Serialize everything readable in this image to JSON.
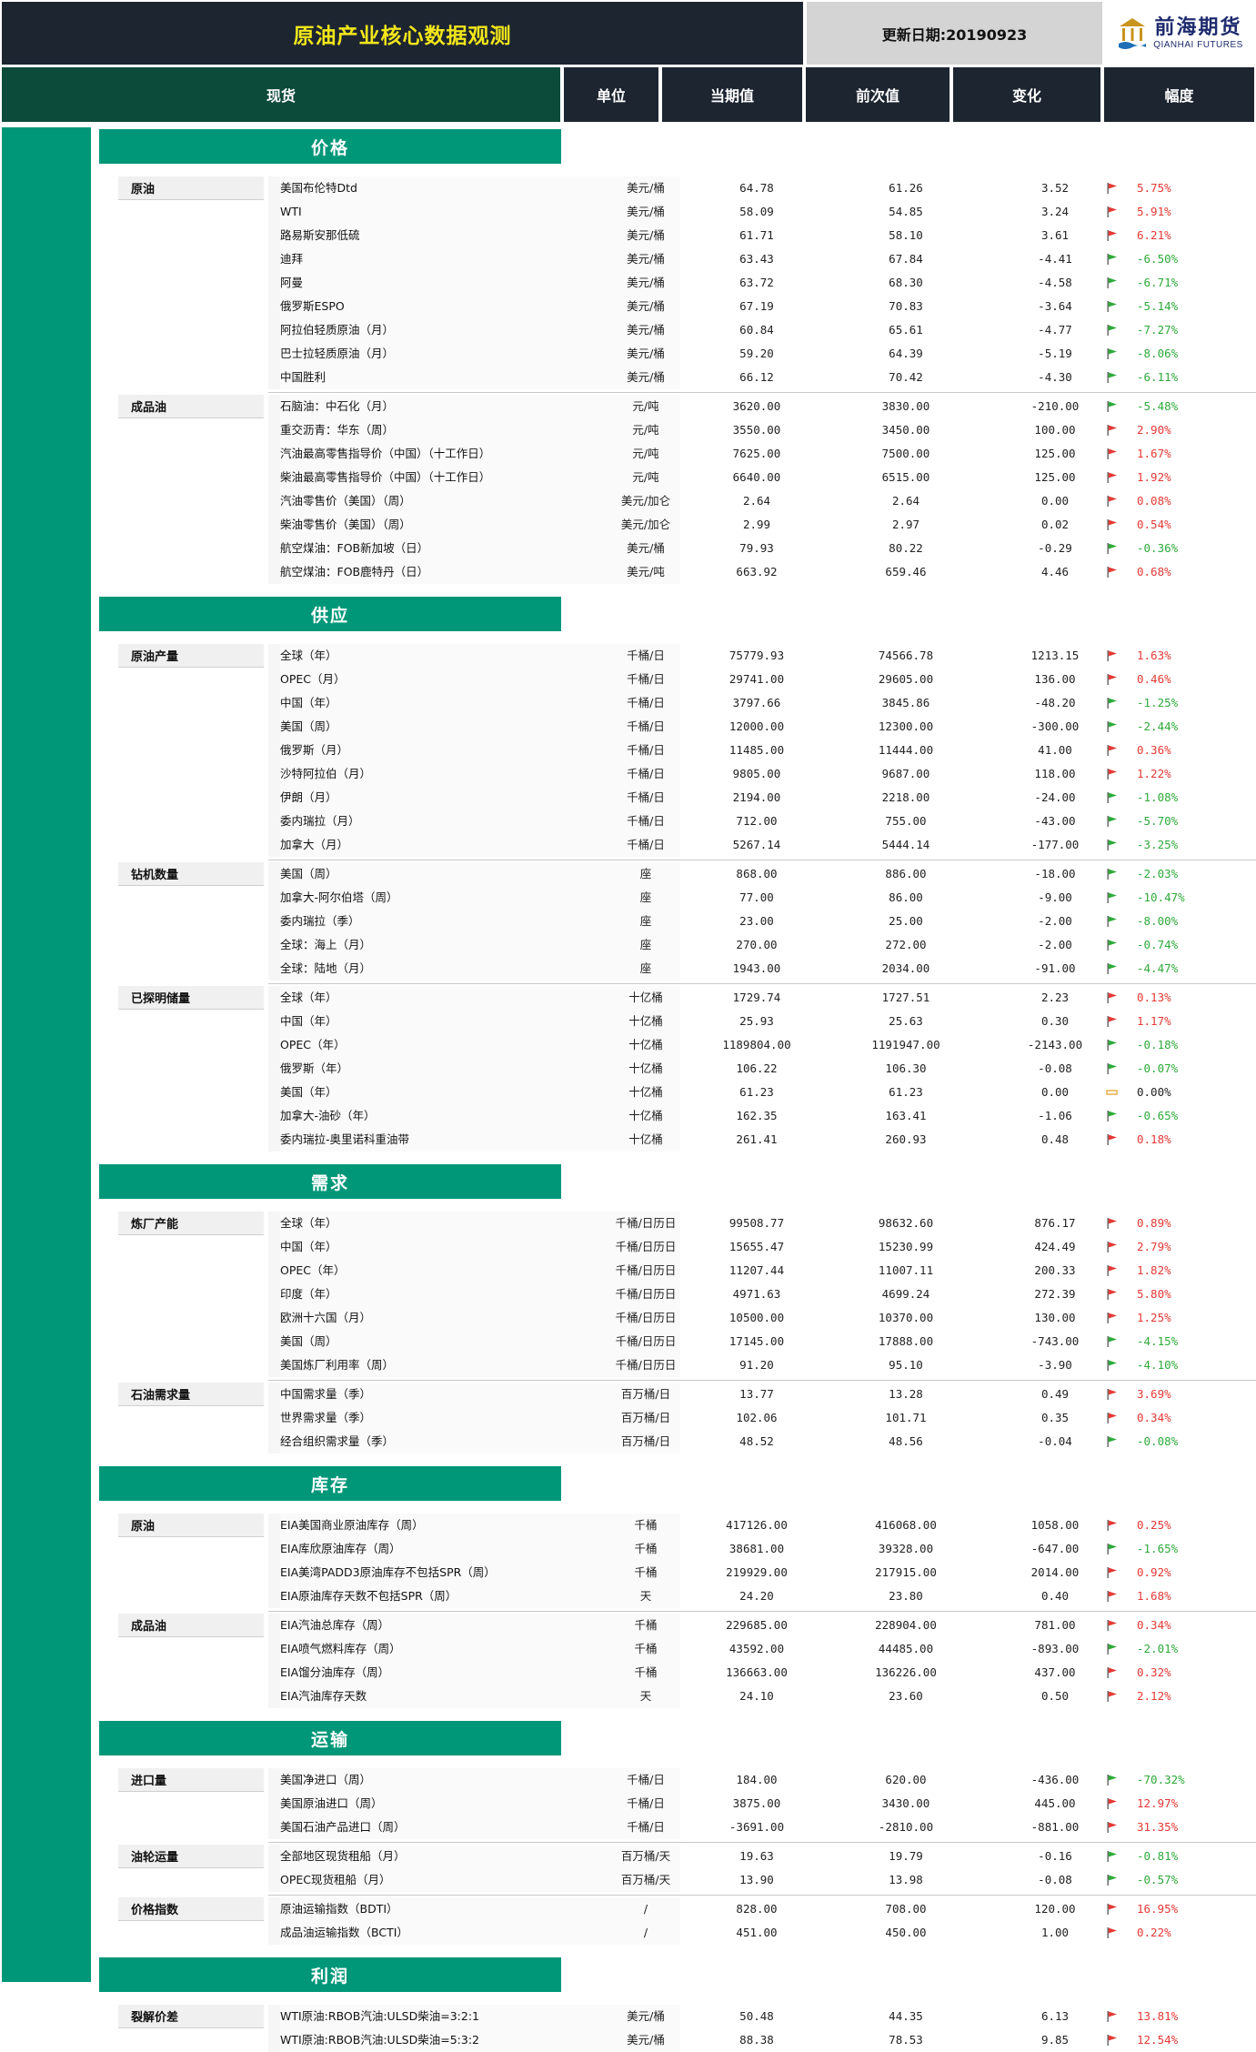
{
  "header": {
    "title": "原油产业核心数据观测",
    "update_label": "更新日期:20190923",
    "logo_cn": "前海期货",
    "logo_en": "QIANHAI FUTURES"
  },
  "columns": {
    "spot": "现货",
    "unit": "单位",
    "current": "当期值",
    "previous": "前次值",
    "change": "变化",
    "pct": "幅度"
  },
  "colors": {
    "up": "#e53935",
    "down": "#2eaa3a",
    "flat": "#e8b04a",
    "accent": "#009779",
    "dark": "#1d2531"
  },
  "sections": [
    {
      "title": "价格",
      "groups": [
        {
          "label": "原油",
          "rows": [
            [
              "美国布伦特Dtd",
              "美元/桶",
              "64.78",
              "61.26",
              "3.52",
              "5.75%",
              "up"
            ],
            [
              "WTI",
              "美元/桶",
              "58.09",
              "54.85",
              "3.24",
              "5.91%",
              "up"
            ],
            [
              "路易斯安那低硫",
              "美元/桶",
              "61.71",
              "58.10",
              "3.61",
              "6.21%",
              "up"
            ],
            [
              "迪拜",
              "美元/桶",
              "63.43",
              "67.84",
              "-4.41",
              "-6.50%",
              "down"
            ],
            [
              "阿曼",
              "美元/桶",
              "63.72",
              "68.30",
              "-4.58",
              "-6.71%",
              "down"
            ],
            [
              "俄罗斯ESPO",
              "美元/桶",
              "67.19",
              "70.83",
              "-3.64",
              "-5.14%",
              "down"
            ],
            [
              "阿拉伯轻质原油（月）",
              "美元/桶",
              "60.84",
              "65.61",
              "-4.77",
              "-7.27%",
              "down"
            ],
            [
              "巴士拉轻质原油（月）",
              "美元/桶",
              "59.20",
              "64.39",
              "-5.19",
              "-8.06%",
              "down"
            ],
            [
              "中国胜利",
              "美元/桶",
              "66.12",
              "70.42",
              "-4.30",
              "-6.11%",
              "down"
            ]
          ]
        },
        {
          "label": "成品油",
          "rows": [
            [
              "石脑油：中石化（月）",
              "元/吨",
              "3620.00",
              "3830.00",
              "-210.00",
              "-5.48%",
              "down"
            ],
            [
              "重交沥青：华东（周）",
              "元/吨",
              "3550.00",
              "3450.00",
              "100.00",
              "2.90%",
              "up"
            ],
            [
              "汽油最高零售指导价（中国）（十工作日）",
              "元/吨",
              "7625.00",
              "7500.00",
              "125.00",
              "1.67%",
              "up"
            ],
            [
              "柴油最高零售指导价（中国）（十工作日）",
              "元/吨",
              "6640.00",
              "6515.00",
              "125.00",
              "1.92%",
              "up"
            ],
            [
              "汽油零售价（美国）（周）",
              "美元/加仑",
              "2.64",
              "2.64",
              "0.00",
              "0.08%",
              "up"
            ],
            [
              "柴油零售价（美国）（周）",
              "美元/加仑",
              "2.99",
              "2.97",
              "0.02",
              "0.54%",
              "up"
            ],
            [
              "航空煤油：FOB新加坡（日）",
              "美元/桶",
              "79.93",
              "80.22",
              "-0.29",
              "-0.36%",
              "down"
            ],
            [
              "航空煤油：FOB鹿特丹（日）",
              "美元/吨",
              "663.92",
              "659.46",
              "4.46",
              "0.68%",
              "up"
            ]
          ]
        }
      ]
    },
    {
      "title": "供应",
      "groups": [
        {
          "label": "原油产量",
          "rows": [
            [
              "全球（年）",
              "千桶/日",
              "75779.93",
              "74566.78",
              "1213.15",
              "1.63%",
              "up"
            ],
            [
              "OPEC（月）",
              "千桶/日",
              "29741.00",
              "29605.00",
              "136.00",
              "0.46%",
              "up"
            ],
            [
              "中国（年）",
              "千桶/日",
              "3797.66",
              "3845.86",
              "-48.20",
              "-1.25%",
              "down"
            ],
            [
              "美国（周）",
              "千桶/日",
              "12000.00",
              "12300.00",
              "-300.00",
              "-2.44%",
              "down"
            ],
            [
              "俄罗斯（月）",
              "千桶/日",
              "11485.00",
              "11444.00",
              "41.00",
              "0.36%",
              "up"
            ],
            [
              "沙特阿拉伯（月）",
              "千桶/日",
              "9805.00",
              "9687.00",
              "118.00",
              "1.22%",
              "up"
            ],
            [
              "伊朗（月）",
              "千桶/日",
              "2194.00",
              "2218.00",
              "-24.00",
              "-1.08%",
              "down"
            ],
            [
              "委内瑞拉（月）",
              "千桶/日",
              "712.00",
              "755.00",
              "-43.00",
              "-5.70%",
              "down"
            ],
            [
              "加拿大（月）",
              "千桶/日",
              "5267.14",
              "5444.14",
              "-177.00",
              "-3.25%",
              "down"
            ]
          ]
        },
        {
          "label": "钻机数量",
          "rows": [
            [
              "美国（周）",
              "座",
              "868.00",
              "886.00",
              "-18.00",
              "-2.03%",
              "down"
            ],
            [
              "加拿大-阿尔伯塔（周）",
              "座",
              "77.00",
              "86.00",
              "-9.00",
              "-10.47%",
              "down"
            ],
            [
              "委内瑞拉（季）",
              "座",
              "23.00",
              "25.00",
              "-2.00",
              "-8.00%",
              "down"
            ],
            [
              "全球：海上（月）",
              "座",
              "270.00",
              "272.00",
              "-2.00",
              "-0.74%",
              "down"
            ],
            [
              "全球：陆地（月）",
              "座",
              "1943.00",
              "2034.00",
              "-91.00",
              "-4.47%",
              "down"
            ]
          ]
        },
        {
          "label": "已探明储量",
          "rows": [
            [
              "全球（年）",
              "十亿桶",
              "1729.74",
              "1727.51",
              "2.23",
              "0.13%",
              "up"
            ],
            [
              "中国（年）",
              "十亿桶",
              "25.93",
              "25.63",
              "0.30",
              "1.17%",
              "up"
            ],
            [
              "OPEC（年）",
              "十亿桶",
              "1189804.00",
              "1191947.00",
              "-2143.00",
              "-0.18%",
              "down"
            ],
            [
              "俄罗斯（年）",
              "十亿桶",
              "106.22",
              "106.30",
              "-0.08",
              "-0.07%",
              "down"
            ],
            [
              "美国（年）",
              "十亿桶",
              "61.23",
              "61.23",
              "0.00",
              "0.00%",
              "flat"
            ],
            [
              "加拿大-油砂（年）",
              "十亿桶",
              "162.35",
              "163.41",
              "-1.06",
              "-0.65%",
              "down"
            ],
            [
              "委内瑞拉-奥里诺科重油带",
              "十亿桶",
              "261.41",
              "260.93",
              "0.48",
              "0.18%",
              "up"
            ]
          ]
        }
      ]
    },
    {
      "title": "需求",
      "groups": [
        {
          "label": "炼厂产能",
          "rows": [
            [
              "全球（年）",
              "千桶/日历日",
              "99508.77",
              "98632.60",
              "876.17",
              "0.89%",
              "up"
            ],
            [
              "中国（年）",
              "千桶/日历日",
              "15655.47",
              "15230.99",
              "424.49",
              "2.79%",
              "up"
            ],
            [
              "OPEC（年）",
              "千桶/日历日",
              "11207.44",
              "11007.11",
              "200.33",
              "1.82%",
              "up"
            ],
            [
              "印度（年）",
              "千桶/日历日",
              "4971.63",
              "4699.24",
              "272.39",
              "5.80%",
              "up"
            ],
            [
              "欧洲十六国（月）",
              "千桶/日历日",
              "10500.00",
              "10370.00",
              "130.00",
              "1.25%",
              "up"
            ],
            [
              "美国（周）",
              "千桶/日历日",
              "17145.00",
              "17888.00",
              "-743.00",
              "-4.15%",
              "down"
            ],
            [
              "美国炼厂利用率（周）",
              "千桶/日历日",
              "91.20",
              "95.10",
              "-3.90",
              "-4.10%",
              "down"
            ]
          ]
        },
        {
          "label": "石油需求量",
          "rows": [
            [
              "中国需求量（季）",
              "百万桶/日",
              "13.77",
              "13.28",
              "0.49",
              "3.69%",
              "up"
            ],
            [
              "世界需求量（季）",
              "百万桶/日",
              "102.06",
              "101.71",
              "0.35",
              "0.34%",
              "up"
            ],
            [
              "经合组织需求量（季）",
              "百万桶/日",
              "48.52",
              "48.56",
              "-0.04",
              "-0.08%",
              "down"
            ]
          ]
        }
      ]
    },
    {
      "title": "库存",
      "groups": [
        {
          "label": "原油",
          "rows": [
            [
              "EIA美国商业原油库存（周）",
              "千桶",
              "417126.00",
              "416068.00",
              "1058.00",
              "0.25%",
              "up"
            ],
            [
              "EIA库欣原油库存（周）",
              "千桶",
              "38681.00",
              "39328.00",
              "-647.00",
              "-1.65%",
              "down"
            ],
            [
              "EIA美湾PADD3原油库存不包括SPR（周）",
              "千桶",
              "219929.00",
              "217915.00",
              "2014.00",
              "0.92%",
              "up"
            ],
            [
              "EIA原油库存天数不包括SPR（周）",
              "天",
              "24.20",
              "23.80",
              "0.40",
              "1.68%",
              "up"
            ]
          ]
        },
        {
          "label": "成品油",
          "rows": [
            [
              "EIA汽油总库存（周）",
              "千桶",
              "229685.00",
              "228904.00",
              "781.00",
              "0.34%",
              "up"
            ],
            [
              "EIA喷气燃料库存（周）",
              "千桶",
              "43592.00",
              "44485.00",
              "-893.00",
              "-2.01%",
              "down"
            ],
            [
              "EIA馏分油库存（周）",
              "千桶",
              "136663.00",
              "136226.00",
              "437.00",
              "0.32%",
              "up"
            ],
            [
              "EIA汽油库存天数",
              "天",
              "24.10",
              "23.60",
              "0.50",
              "2.12%",
              "up"
            ]
          ]
        }
      ]
    },
    {
      "title": "运输",
      "groups": [
        {
          "label": "进口量",
          "rows": [
            [
              "美国净进口（周）",
              "千桶/日",
              "184.00",
              "620.00",
              "-436.00",
              "-70.32%",
              "down"
            ],
            [
              "美国原油进口（周）",
              "千桶/日",
              "3875.00",
              "3430.00",
              "445.00",
              "12.97%",
              "up"
            ],
            [
              "美国石油产品进口（周）",
              "千桶/日",
              "-3691.00",
              "-2810.00",
              "-881.00",
              "31.35%",
              "up"
            ]
          ]
        },
        {
          "label": "油轮运量",
          "rows": [
            [
              "全部地区现货租船（月）",
              "百万桶/天",
              "19.63",
              "19.79",
              "-0.16",
              "-0.81%",
              "down"
            ],
            [
              "OPEC现货租船（月）",
              "百万桶/天",
              "13.90",
              "13.98",
              "-0.08",
              "-0.57%",
              "down"
            ]
          ]
        },
        {
          "label": "价格指数",
          "rows": [
            [
              "原油运输指数（BDTI）",
              "/",
              "828.00",
              "708.00",
              "120.00",
              "16.95%",
              "up"
            ],
            [
              "成品油运输指数（BCTI）",
              "/",
              "451.00",
              "450.00",
              "1.00",
              "0.22%",
              "up"
            ]
          ]
        }
      ]
    },
    {
      "title": "利润",
      "groups": [
        {
          "label": "裂解价差",
          "rows": [
            [
              "WTI原油:RBOB汽油:ULSD柴油=3:2:1",
              "美元/桶",
              "50.48",
              "44.35",
              "6.13",
              "13.81%",
              "up"
            ],
            [
              "WTI原油:RBOB汽油:ULSD柴油=5:3:2",
              "美元/桶",
              "88.38",
              "78.53",
              "9.85",
              "12.54%",
              "up"
            ]
          ]
        }
      ]
    }
  ]
}
